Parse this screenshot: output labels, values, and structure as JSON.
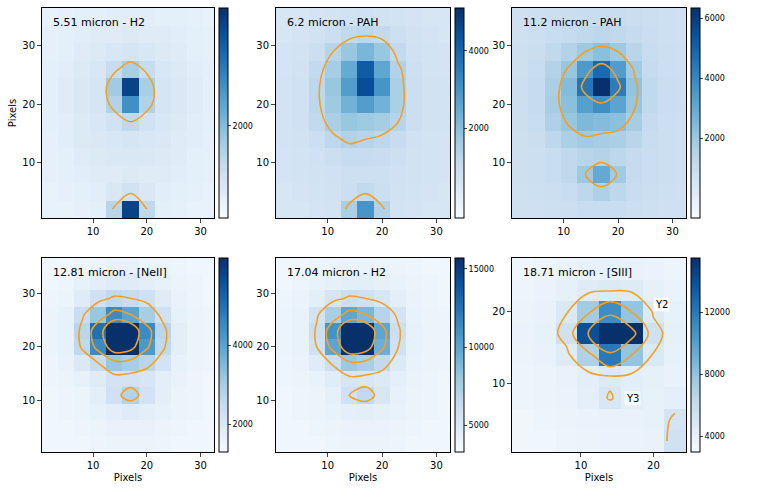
{
  "chart_data": [
    {
      "type": "heatmap",
      "title": "5.51 micron - H2",
      "y_label": "Pixels",
      "xlim": [
        0.5,
        32.5
      ],
      "xticks": [
        10,
        20,
        30
      ],
      "ylim": [
        0.5,
        36.5
      ],
      "yticks": [
        10,
        20,
        30
      ],
      "x": [
        2,
        5,
        8,
        11,
        14,
        17,
        20,
        23,
        26,
        29,
        32
      ],
      "y": [
        2,
        5,
        8,
        11,
        14,
        17,
        20,
        23,
        26,
        29,
        32,
        35
      ],
      "z": [
        [
          500,
          500,
          550,
          600,
          1400,
          4000,
          1300,
          600,
          550,
          500,
          500
        ],
        [
          500,
          550,
          600,
          650,
          800,
          1000,
          800,
          650,
          600,
          550,
          500
        ],
        [
          550,
          600,
          650,
          700,
          700,
          750,
          700,
          700,
          650,
          600,
          550
        ],
        [
          550,
          600,
          700,
          750,
          800,
          800,
          800,
          750,
          700,
          600,
          550
        ],
        [
          550,
          650,
          750,
          800,
          850,
          900,
          850,
          800,
          700,
          650,
          550
        ],
        [
          600,
          650,
          750,
          850,
          1000,
          1300,
          1000,
          850,
          750,
          650,
          600
        ],
        [
          600,
          700,
          800,
          900,
          1500,
          2800,
          1500,
          900,
          800,
          700,
          600
        ],
        [
          600,
          700,
          800,
          900,
          1700,
          4000,
          1600,
          900,
          800,
          700,
          600
        ],
        [
          600,
          650,
          750,
          850,
          1200,
          1600,
          1200,
          850,
          750,
          650,
          600
        ],
        [
          550,
          600,
          700,
          750,
          850,
          900,
          850,
          750,
          700,
          600,
          550
        ],
        [
          550,
          600,
          650,
          700,
          700,
          750,
          700,
          700,
          650,
          600,
          550
        ],
        [
          500,
          550,
          600,
          600,
          650,
          650,
          650,
          600,
          600,
          550,
          500
        ]
      ],
      "color_range": [
        200,
        4300
      ],
      "color_ticks": [
        2000
      ],
      "contour_levels": [
        1300
      ]
    },
    {
      "type": "heatmap",
      "title": "6.2 micron - PAH",
      "xlim": [
        0.5,
        32.5
      ],
      "xticks": [
        10,
        20,
        30
      ],
      "ylim": [
        0.5,
        36.5
      ],
      "yticks": [
        10,
        20,
        30
      ],
      "x": [
        2,
        5,
        8,
        11,
        14,
        17,
        20,
        23,
        26,
        29,
        32
      ],
      "y": [
        2,
        5,
        8,
        11,
        14,
        17,
        20,
        23,
        26,
        29,
        32,
        35
      ],
      "z": [
        [
          600,
          600,
          650,
          700,
          1500,
          3000,
          1400,
          700,
          650,
          600,
          600
        ],
        [
          600,
          650,
          700,
          750,
          900,
          1100,
          900,
          750,
          700,
          650,
          600
        ],
        [
          650,
          700,
          750,
          800,
          850,
          850,
          850,
          800,
          750,
          700,
          650
        ],
        [
          650,
          700,
          800,
          900,
          1000,
          1000,
          950,
          850,
          750,
          700,
          650
        ],
        [
          700,
          750,
          900,
          1200,
          1400,
          1300,
          1200,
          1000,
          800,
          700,
          650
        ],
        [
          700,
          800,
          1100,
          1500,
          1800,
          1700,
          1600,
          1300,
          900,
          750,
          700
        ],
        [
          700,
          800,
          1200,
          1700,
          2300,
          2800,
          2300,
          1500,
          900,
          750,
          700
        ],
        [
          700,
          800,
          1200,
          1800,
          2800,
          4500,
          3000,
          1500,
          900,
          750,
          700
        ],
        [
          650,
          750,
          1100,
          1600,
          2500,
          4200,
          2600,
          1400,
          850,
          700,
          650
        ],
        [
          650,
          700,
          900,
          1300,
          1800,
          2200,
          1800,
          1100,
          800,
          700,
          650
        ],
        [
          600,
          650,
          750,
          900,
          1100,
          1200,
          1100,
          850,
          750,
          650,
          600
        ],
        [
          600,
          600,
          650,
          700,
          750,
          800,
          750,
          700,
          650,
          600,
          600
        ]
      ],
      "color_range": [
        -300,
        5100
      ],
      "color_ticks": [
        2000,
        4000
      ],
      "contour_levels": [
        1300
      ]
    },
    {
      "type": "heatmap",
      "title": "11.2 micron - PAH",
      "xlim": [
        0.5,
        32.5
      ],
      "xticks": [
        10,
        20,
        30
      ],
      "ylim": [
        0.5,
        36.5
      ],
      "yticks": [
        10,
        20,
        30
      ],
      "x": [
        2,
        5,
        8,
        11,
        14,
        17,
        20,
        23,
        26,
        29,
        32
      ],
      "y": [
        2,
        5,
        8,
        11,
        14,
        17,
        20,
        23,
        26,
        29,
        32,
        35
      ],
      "z": [
        [
          800,
          800,
          850,
          900,
          1000,
          1000,
          1000,
          900,
          850,
          800,
          800
        ],
        [
          800,
          850,
          900,
          1000,
          1300,
          1600,
          1300,
          1000,
          900,
          850,
          800
        ],
        [
          850,
          900,
          1000,
          1200,
          2000,
          3000,
          1900,
          1100,
          950,
          900,
          850
        ],
        [
          850,
          900,
          1000,
          1200,
          1400,
          1500,
          1300,
          1100,
          950,
          900,
          850
        ],
        [
          850,
          950,
          1300,
          1700,
          1900,
          1800,
          1700,
          1400,
          1000,
          900,
          850
        ],
        [
          900,
          1000,
          1600,
          2100,
          2500,
          2400,
          2300,
          1800,
          1100,
          900,
          850
        ],
        [
          900,
          1100,
          1800,
          2300,
          3300,
          3800,
          3200,
          2100,
          1200,
          950,
          900
        ],
        [
          900,
          1100,
          1700,
          2400,
          4500,
          6500,
          4300,
          2200,
          1200,
          950,
          900
        ],
        [
          850,
          1000,
          1500,
          2100,
          3500,
          4800,
          3400,
          1900,
          1100,
          900,
          850
        ],
        [
          850,
          950,
          1200,
          1500,
          2000,
          2300,
          2000,
          1400,
          1000,
          900,
          850
        ],
        [
          800,
          900,
          1000,
          1100,
          1200,
          1300,
          1200,
          1100,
          950,
          850,
          800
        ],
        [
          800,
          850,
          900,
          950,
          1000,
          1000,
          1000,
          950,
          900,
          850,
          800
        ]
      ],
      "color_range": [
        -650,
        6350
      ],
      "color_ticks": [
        2000,
        4000,
        6000
      ],
      "contour_levels": [
        2000,
        4000
      ]
    },
    {
      "type": "heatmap",
      "title": "12.81 micron - [NeII]",
      "x_label": "Pixels",
      "xlim": [
        0.5,
        32.5
      ],
      "xticks": [
        10,
        20,
        30
      ],
      "ylim": [
        0.5,
        36.5
      ],
      "yticks": [
        10,
        20,
        30
      ],
      "x": [
        2,
        5,
        8,
        11,
        14,
        17,
        20,
        23,
        26,
        29,
        32
      ],
      "y": [
        2,
        5,
        8,
        11,
        14,
        17,
        20,
        23,
        26,
        29,
        32,
        35
      ],
      "z": [
        [
          1500,
          1500,
          1500,
          1550,
          1600,
          1600,
          1600,
          1550,
          1500,
          1500,
          1500
        ],
        [
          1500,
          1500,
          1550,
          1600,
          1650,
          1650,
          1650,
          1600,
          1550,
          1500,
          1500
        ],
        [
          1500,
          1550,
          1600,
          1700,
          1800,
          1900,
          1800,
          1700,
          1600,
          1550,
          1500
        ],
        [
          1500,
          1550,
          1600,
          1800,
          2300,
          2800,
          2200,
          1800,
          1600,
          1550,
          1500
        ],
        [
          1550,
          1600,
          1700,
          1900,
          2200,
          2200,
          2100,
          1800,
          1650,
          1550,
          1500
        ],
        [
          1550,
          1650,
          2000,
          2500,
          3200,
          3000,
          2700,
          2200,
          1700,
          1600,
          1550
        ],
        [
          1600,
          1700,
          2600,
          4500,
          9000,
          8000,
          4200,
          2600,
          1800,
          1600,
          1550
        ],
        [
          1600,
          1700,
          2700,
          5000,
          12000,
          9500,
          4500,
          2700,
          1800,
          1600,
          1550
        ],
        [
          1600,
          1700,
          2400,
          3200,
          4500,
          4000,
          3000,
          2300,
          1700,
          1600,
          1550
        ],
        [
          1550,
          1600,
          1900,
          2300,
          2600,
          2500,
          2300,
          1900,
          1650,
          1550,
          1500
        ],
        [
          1500,
          1550,
          1700,
          1800,
          1900,
          1900,
          1800,
          1700,
          1600,
          1550,
          1500
        ],
        [
          1500,
          1500,
          1550,
          1600,
          1650,
          1650,
          1600,
          1600,
          1550,
          1500,
          1500
        ]
      ],
      "color_range": [
        1300,
        6200
      ],
      "color_ticks": [
        2000,
        4000
      ],
      "contour_levels": [
        2500,
        4000,
        7000
      ]
    },
    {
      "type": "heatmap",
      "title": "17.04 micron - H2",
      "x_label": "Pixels",
      "xlim": [
        0.5,
        32.5
      ],
      "xticks": [
        10,
        20,
        30
      ],
      "ylim": [
        0.5,
        36.5
      ],
      "yticks": [
        10,
        20,
        30
      ],
      "x": [
        2,
        5,
        8,
        11,
        14,
        17,
        20,
        23,
        26,
        29,
        32
      ],
      "y": [
        2,
        5,
        8,
        11,
        14,
        17,
        20,
        23,
        26,
        29,
        32,
        35
      ],
      "z": [
        [
          3800,
          3800,
          3800,
          3900,
          4000,
          4000,
          4000,
          3900,
          3800,
          3800,
          3800
        ],
        [
          3800,
          3800,
          3900,
          4000,
          4100,
          4100,
          4100,
          4000,
          3900,
          3800,
          3800
        ],
        [
          3800,
          3900,
          4000,
          4200,
          4500,
          4600,
          4400,
          4200,
          4000,
          3900,
          3800
        ],
        [
          3800,
          3900,
          4000,
          4400,
          5800,
          6500,
          5200,
          4300,
          4000,
          3900,
          3800
        ],
        [
          3900,
          4000,
          4200,
          4700,
          5300,
          5200,
          5000,
          4500,
          4100,
          3900,
          3800
        ],
        [
          3900,
          4100,
          4800,
          6000,
          8000,
          7500,
          6500,
          5000,
          4200,
          4000,
          3900
        ],
        [
          4000,
          4200,
          5800,
          10000,
          20000,
          18000,
          9500,
          5800,
          4300,
          4000,
          3900
        ],
        [
          4000,
          4200,
          6000,
          11000,
          25000,
          21000,
          10000,
          6000,
          4300,
          4000,
          3900
        ],
        [
          4000,
          4200,
          5600,
          7500,
          10000,
          9000,
          7000,
          5500,
          4200,
          4000,
          3900
        ],
        [
          3900,
          4100,
          4600,
          5400,
          6000,
          5800,
          5300,
          4600,
          4100,
          3900,
          3800
        ],
        [
          3800,
          3900,
          4200,
          4400,
          4600,
          4600,
          4400,
          4200,
          4000,
          3900,
          3800
        ],
        [
          3800,
          3800,
          3900,
          4000,
          4100,
          4100,
          4000,
          4000,
          3900,
          3800,
          3800
        ]
      ],
      "color_range": [
        3300,
        15700
      ],
      "color_ticks": [
        5000,
        10000,
        15000
      ],
      "contour_levels": [
        5800,
        9000,
        15000
      ]
    },
    {
      "type": "heatmap",
      "title": "18.71 micron - [SIII]",
      "x_label": "Pixels",
      "xlim": [
        0.5,
        24.5
      ],
      "xticks": [
        10,
        20
      ],
      "ylim": [
        0.5,
        27.5
      ],
      "yticks": [
        10,
        20
      ],
      "x": [
        2,
        5,
        8,
        11,
        14,
        17,
        20,
        23
      ],
      "y": [
        2,
        5,
        8,
        11,
        14,
        17,
        20,
        23,
        26
      ],
      "z": [
        [
          3500,
          3500,
          3600,
          3700,
          3800,
          3800,
          3900,
          5500
        ],
        [
          3500,
          3600,
          3700,
          3800,
          3900,
          3900,
          4000,
          5200
        ],
        [
          3600,
          3700,
          3800,
          4200,
          5000,
          4300,
          4000,
          4200
        ],
        [
          3600,
          3700,
          3900,
          4300,
          4700,
          4400,
          4100,
          3900
        ],
        [
          3700,
          3900,
          4500,
          7000,
          12000,
          8000,
          4800,
          4000
        ],
        [
          3800,
          4000,
          5500,
          14000,
          30000,
          16000,
          5500,
          4100
        ],
        [
          3700,
          3900,
          4800,
          7500,
          11000,
          8000,
          4700,
          4000
        ],
        [
          3600,
          3800,
          4100,
          4500,
          4700,
          4600,
          4100,
          3800
        ],
        [
          3500,
          3600,
          3800,
          3900,
          4000,
          3900,
          3800,
          3600
        ]
      ],
      "color_range": [
        3000,
        15500
      ],
      "color_ticks": [
        4000,
        8000,
        12000
      ],
      "contour_levels": [
        4900,
        8000,
        14000
      ],
      "annotations": [
        {
          "text": "Y2",
          "x": 20,
          "y": 21
        },
        {
          "text": "Y3",
          "x": 16,
          "y": 8
        }
      ]
    }
  ]
}
